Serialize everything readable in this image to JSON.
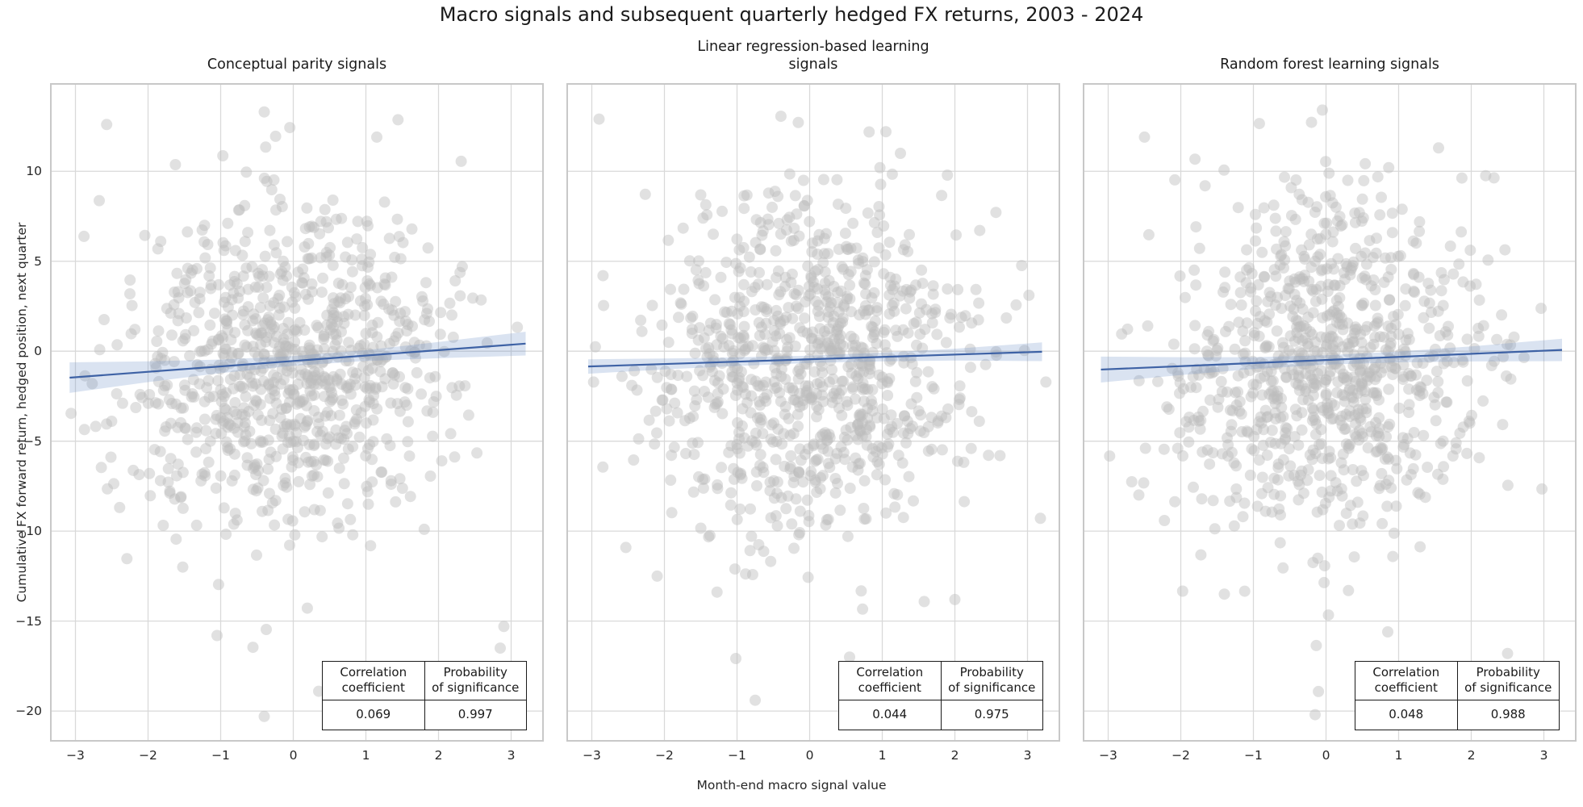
{
  "page": {
    "title": "Macro signals and subsequent quarterly hedged FX returns, 2003 - 2024"
  },
  "chart_data": {
    "type": "scatter",
    "title": "Macro signals and subsequent quarterly hedged FX returns, 2003 - 2024",
    "xlabel": "Month-end macro signal value",
    "ylabel": "Cumulative FX forward return, hedged position, next quarter",
    "xlim": [
      -3.35,
      3.45
    ],
    "ylim": [
      -21.7,
      14.9
    ],
    "x_clip": [
      -3.15,
      3.3
    ],
    "y_clip": [
      -20.4,
      13.4
    ],
    "grid": true,
    "legend": "none",
    "x_ticks": [
      {
        "v": -3,
        "label": "−3"
      },
      {
        "v": -2,
        "label": "−2"
      },
      {
        "v": -1,
        "label": "−1"
      },
      {
        "v": 0,
        "label": "0"
      },
      {
        "v": 1,
        "label": "1"
      },
      {
        "v": 2,
        "label": "2"
      },
      {
        "v": 3,
        "label": "3"
      }
    ],
    "y_ticks": [
      {
        "v": -20,
        "label": "−20"
      },
      {
        "v": -15,
        "label": "−15"
      },
      {
        "v": -10,
        "label": "−10"
      },
      {
        "v": -5,
        "label": "−5"
      },
      {
        "v": 0,
        "label": "0"
      },
      {
        "v": 5,
        "label": "5"
      },
      {
        "v": 10,
        "label": "10"
      }
    ],
    "style": {
      "grid_color": "#d9d9d9",
      "border_color": "#c8c8c8",
      "point_color": "#bdbdbd",
      "point_opacity": 0.45,
      "point_radius": 7,
      "line_color": "#3e62a5",
      "line_width": 2.2,
      "band_color": "#6d8fc9",
      "band_opacity": 0.25
    },
    "stats_headers": [
      "Correlation\ncoefficient",
      "Probability\nof significance"
    ],
    "panels": [
      {
        "title": "Conceptual parity signals",
        "correlation": "0.069",
        "probability": "0.997",
        "line": {
          "x1": -3.08,
          "y1": -1.47,
          "x2": 3.2,
          "y2": 0.42
        },
        "band": {
          "x": [
            -3.08,
            -2,
            -1,
            0,
            1,
            2,
            3.2
          ],
          "upper": [
            -0.62,
            -0.56,
            -0.46,
            -0.27,
            0.06,
            0.51,
            1.08
          ],
          "lower": [
            -2.32,
            -1.72,
            -1.22,
            -0.81,
            -0.54,
            -0.39,
            -0.24
          ]
        },
        "scatter": {
          "seed": 101,
          "n": 880,
          "x_mean": 0,
          "x_sigma": 1.08,
          "y_mean": -0.8,
          "y_sigma": 4.5,
          "outliers": [
            [
              -2.57,
              12.6
            ],
            [
              -0.4,
              13.3
            ],
            [
              1.15,
              11.9
            ],
            [
              -0.4,
              -20.3
            ],
            [
              0.35,
              -18.9
            ],
            [
              -1.05,
              -15.8
            ],
            [
              2.85,
              -16.5
            ],
            [
              2.9,
              -15.3
            ]
          ]
        }
      },
      {
        "title": "Linear regression-based learning\nsignals",
        "correlation": "0.044",
        "probability": "0.975",
        "line": {
          "x1": -3.05,
          "y1": -0.85,
          "x2": 3.2,
          "y2": -0.03
        },
        "band": {
          "x": [
            -3.05,
            -2,
            -1,
            0,
            1,
            2,
            3.2
          ],
          "upper": [
            -0.45,
            -0.41,
            -0.34,
            -0.25,
            -0.08,
            0.14,
            0.49
          ],
          "lower": [
            -1.25,
            -1.01,
            -0.82,
            -0.65,
            -0.56,
            -0.52,
            -0.55
          ]
        },
        "scatter": {
          "seed": 202,
          "n": 880,
          "x_mean": 0,
          "x_sigma": 1.08,
          "y_mean": -0.8,
          "y_sigma": 4.5,
          "outliers": [
            [
              -2.9,
              12.9
            ],
            [
              1.05,
              12.2
            ],
            [
              1.25,
              11.0
            ],
            [
              -0.75,
              -19.4
            ],
            [
              0.55,
              -17.0
            ],
            [
              2.0,
              -13.8
            ],
            [
              -2.1,
              -12.5
            ]
          ]
        }
      },
      {
        "title": "Random forest learning signals",
        "correlation": "0.048",
        "probability": "0.988",
        "line": {
          "x1": -3.1,
          "y1": -1.02,
          "x2": 3.25,
          "y2": 0.07
        },
        "band": {
          "x": [
            -3.1,
            -2,
            -1,
            0,
            1,
            2,
            3.25
          ],
          "upper": [
            -0.3,
            -0.33,
            -0.33,
            -0.23,
            -0.02,
            0.27,
            0.69
          ],
          "lower": [
            -1.74,
            -1.33,
            -0.99,
            -0.75,
            -0.62,
            -0.57,
            -0.55
          ]
        },
        "scatter": {
          "seed": 303,
          "n": 880,
          "x_mean": 0,
          "x_sigma": 1.08,
          "y_mean": -0.8,
          "y_sigma": 4.5,
          "outliers": [
            [
              -0.05,
              13.4
            ],
            [
              -2.5,
              11.9
            ],
            [
              1.55,
              11.3
            ],
            [
              2.5,
              -16.8
            ],
            [
              0.85,
              -15.6
            ],
            [
              -0.15,
              -20.2
            ],
            [
              -1.4,
              -13.5
            ]
          ]
        }
      }
    ]
  }
}
